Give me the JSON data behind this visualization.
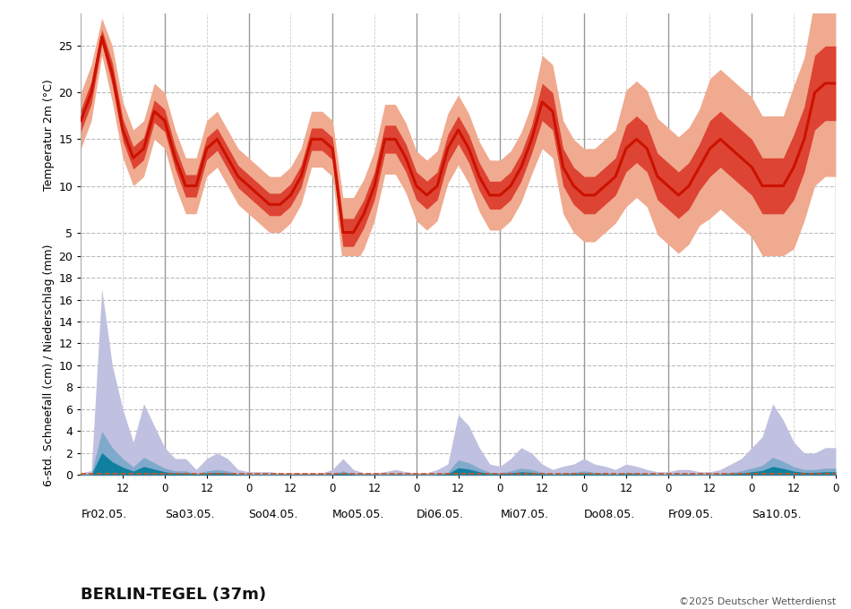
{
  "station": "BERLIN-TEGEL (37m)",
  "copyright": "©2025 Deutscher Wetterdienst",
  "temp_ylabel": "Temperatur 2m (°C)",
  "precip_ylabel": "6-std. Schneefall (cm) / Niederschlag (mm)",
  "day_labels": [
    "Fr02.05.",
    "Sa03.05.",
    "So04.05.",
    "Mo05.05.",
    "Di06.05.",
    "Mi07.05.",
    "Do08.05.",
    "Fr09.05.",
    "Sa10.05."
  ],
  "num_steps": 73,
  "temp_ylim": [
    2.5,
    28.5
  ],
  "temp_yticks": [
    5,
    10,
    15,
    20,
    25
  ],
  "precip_ylim": [
    0,
    20
  ],
  "precip_yticks": [
    0,
    2,
    4,
    6,
    8,
    10,
    12,
    14,
    16,
    18,
    20
  ],
  "bg_color": "#ffffff",
  "temp_line_color": "#cc1100",
  "temp_band1_color": "#dd4433",
  "temp_band2_color": "#f0aa90",
  "precip_area_outer_color": "#c0c0e0",
  "precip_area_mid_color": "#80aacc",
  "precip_area_inner_color": "#1080a0",
  "precip_dashed_color": "#cc5522",
  "grid_h_color": "#bbbbbb",
  "grid_v_color": "#cccccc",
  "vline_day_color": "#999999",
  "vline_12h_color": "#cccccc",
  "temp_mean": [
    17,
    20,
    26,
    22,
    16,
    13,
    14,
    18,
    17,
    13,
    10,
    10,
    14,
    15,
    13,
    11,
    10,
    9,
    8,
    8,
    9,
    11,
    15,
    15,
    14,
    5,
    5,
    7,
    10,
    15,
    15,
    13,
    10,
    9,
    10,
    14,
    16,
    14,
    11,
    9,
    9,
    10,
    12,
    15,
    19,
    18,
    12,
    10,
    9,
    9,
    10,
    11,
    14,
    15,
    14,
    11,
    10,
    9,
    10,
    12,
    14,
    15,
    14,
    13,
    12,
    10,
    10,
    10,
    12,
    15,
    20,
    21,
    21
  ],
  "temp_spread1": [
    1.2,
    1.2,
    0.8,
    1.2,
    1.2,
    1.2,
    1.2,
    1.2,
    1.2,
    1.2,
    1.2,
    1.2,
    1.2,
    1.2,
    1.2,
    1.2,
    1.2,
    1.2,
    1.2,
    1.2,
    1.2,
    1.2,
    1.2,
    1.2,
    1.2,
    1.5,
    1.5,
    1.5,
    1.5,
    1.5,
    1.5,
    1.5,
    1.5,
    1.5,
    1.5,
    1.5,
    1.5,
    1.5,
    1.5,
    1.5,
    1.5,
    1.5,
    1.5,
    1.5,
    2.0,
    2.0,
    2.0,
    2.0,
    2.0,
    2.0,
    2.0,
    2.0,
    2.5,
    2.5,
    2.5,
    2.5,
    2.5,
    2.5,
    2.5,
    2.5,
    3.0,
    3.0,
    3.0,
    3.0,
    3.0,
    3.0,
    3.0,
    3.0,
    3.5,
    3.5,
    4.0,
    4.0,
    4.0
  ],
  "precip_outer": [
    0.2,
    0.4,
    17,
    10,
    6,
    3,
    6.5,
    4.5,
    2.5,
    1.5,
    1.5,
    0.5,
    1.5,
    2.0,
    1.5,
    0.5,
    0.3,
    0.3,
    0.3,
    0.2,
    0.2,
    0.2,
    0.2,
    0.2,
    0.5,
    1.5,
    0.5,
    0.2,
    0.2,
    0.3,
    0.5,
    0.3,
    0.2,
    0.2,
    0.5,
    1.0,
    5.5,
    4.5,
    2.5,
    1.0,
    0.8,
    1.5,
    2.5,
    2.0,
    1.0,
    0.5,
    0.8,
    1.0,
    1.5,
    1.0,
    0.8,
    0.5,
    1.0,
    0.8,
    0.5,
    0.3,
    0.3,
    0.5,
    0.5,
    0.3,
    0.3,
    0.5,
    1.0,
    1.5,
    2.5,
    3.5,
    6.5,
    5.0,
    3.0,
    2.0,
    2.0,
    2.5,
    2.5
  ],
  "precip_mid_ratio": 0.25,
  "precip_inner_ratio": 0.12,
  "precip_dashed_val": 0.15
}
